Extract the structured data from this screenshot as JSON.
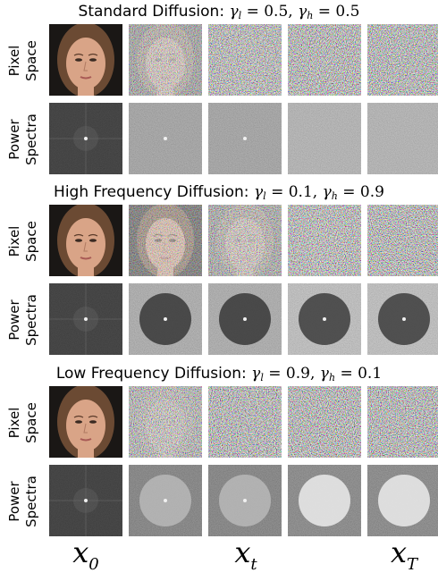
{
  "sections": [
    {
      "name": "Standard Diffusion:",
      "gamma_l": "0.5",
      "gamma_h": "0.5"
    },
    {
      "name": "High Frequency Diffusion:",
      "gamma_l": "0.1",
      "gamma_h": "0.9"
    },
    {
      "name": "Low Frequency Diffusion:",
      "gamma_l": "0.9",
      "gamma_h": "0.1"
    }
  ],
  "row_labels": {
    "pixel": [
      "Pixel",
      "Space"
    ],
    "power": [
      "Power",
      "Spectra"
    ]
  },
  "columns": [
    {
      "symbol": "x",
      "sub": "0"
    },
    {
      "symbol": "x",
      "sub": "t"
    },
    {
      "symbol": "x",
      "sub": "T"
    }
  ],
  "math": {
    "gamma": "γ",
    "l": "l",
    "h": "h",
    "eq": "=",
    "comma": ","
  },
  "tiles": {
    "standard": {
      "pixel_noise": [
        0,
        0.55,
        0.85,
        1,
        1
      ],
      "spectrum": [
        "original",
        "flat",
        "flat",
        "flat-light",
        "flat-light"
      ]
    },
    "high": {
      "pixel_noise": [
        0,
        0.35,
        0.6,
        0.85,
        0.9
      ],
      "spectrum": [
        "original",
        "dark-disk",
        "dark-disk",
        "dark-disk-light",
        "dark-disk-light"
      ]
    },
    "low": {
      "pixel_noise": [
        0,
        0.7,
        0.95,
        1,
        1
      ],
      "spectrum": [
        "original",
        "light-disk",
        "light-disk",
        "bright-disk",
        "bright-disk"
      ]
    }
  },
  "colors": {
    "skin": "#d9a487",
    "hair": "#6b4a33",
    "bg_dark": "#1a1715",
    "spectrum_bg": "#1e1e1e"
  }
}
